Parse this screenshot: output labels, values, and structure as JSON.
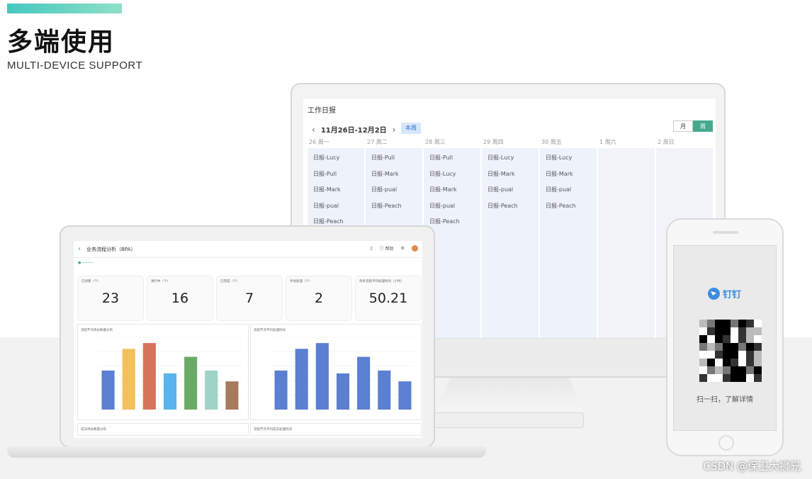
{
  "header": {
    "title": "多端使用",
    "subtitle": "MULTI-DEVICE SUPPORT"
  },
  "watermark": "CSDN @保卫大狮兄",
  "monitor": {
    "title": "工作日报",
    "date_range": "11月26日-12月2日",
    "this_week_button": "本周",
    "view_month": "月",
    "view_week": "周",
    "days": [
      "26 周一",
      "27 周二",
      "28 周三",
      "29 周四",
      "30 周五",
      "1 周六",
      "2 周日"
    ],
    "columns": [
      [
        "日报-Lucy",
        "日报-Pull",
        "日报-Mark",
        "日报-pual",
        "日报-Peach"
      ],
      [
        "日报-Pull",
        "日报-Mark",
        "日报-pual",
        "日报-Peach"
      ],
      [
        "日报-Pull",
        "日报-Lucy",
        "日报-Mark",
        "日报-pual",
        "日报-Peach"
      ],
      [
        "日报-Lucy",
        "日报-Mark",
        "日报-pual",
        "日报-Peach"
      ],
      [
        "日报-Lucy",
        "日报-Mark",
        "日报-pual",
        "日报-Peach"
      ],
      [],
      []
    ]
  },
  "laptop": {
    "title": "业务流程分析（BPA）",
    "help": "帮助",
    "stats": [
      {
        "label": "已创建（个）",
        "value": "23"
      },
      {
        "label": "进行中（个）",
        "value": "16"
      },
      {
        "label": "已完成（个）",
        "value": "7"
      },
      {
        "label": "手动处理（个）",
        "value": "2"
      },
      {
        "label": "单条流程平均处理时间（小时）",
        "value": "50.21"
      }
    ],
    "chart_left_title": "流程节点待办数量分布",
    "chart_right_title": "流程节点平均处理时间",
    "bottom_left_title": "成员待办数量分布",
    "bottom_right_title": "流程节点平均成员处理时间",
    "colors_left": [
      "#5b7fd1",
      "#f2c15a",
      "#d8735a",
      "#5ab3ea",
      "#6aaa64",
      "#9fd3c7",
      "#a77a5e"
    ],
    "color_right": "#5b7fd1"
  },
  "chart_data": [
    {
      "type": "bar",
      "title": "流程节点待办数量分布",
      "categories": [
        "",
        "",
        "",
        "",
        "",
        "",
        ""
      ],
      "values": [
        54,
        84,
        92,
        50,
        73,
        54,
        39
      ],
      "ylim": [
        0,
        100
      ]
    },
    {
      "type": "bar",
      "title": "流程节点平均处理时间",
      "categories": [
        "",
        "",
        "",
        "",
        "",
        "",
        ""
      ],
      "values": [
        54,
        84,
        92,
        50,
        73,
        54,
        39
      ],
      "ylim": [
        0,
        100
      ]
    }
  ],
  "phone": {
    "brand": "钉钉",
    "scan_text": "扫一扫，了解详情"
  }
}
